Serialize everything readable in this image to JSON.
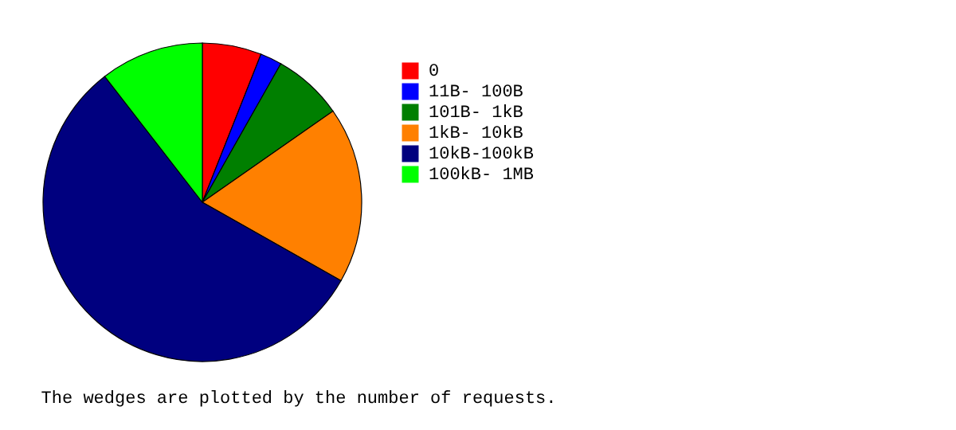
{
  "chart_data": {
    "type": "pie",
    "categories": [
      "0",
      "11B- 100B",
      "101B-  1kB",
      "1kB- 10kB",
      "10kB-100kB",
      "100kB-  1MB"
    ],
    "values": [
      6.0,
      2.2,
      7.1,
      17.9,
      56.3,
      10.5
    ],
    "colors": [
      "#ff0000",
      "#0000ff",
      "#007f00",
      "#ff8000",
      "#00007f",
      "#00ff00"
    ],
    "legend": "right",
    "annotations": [
      "The wedges are plotted by the number of requests."
    ]
  }
}
